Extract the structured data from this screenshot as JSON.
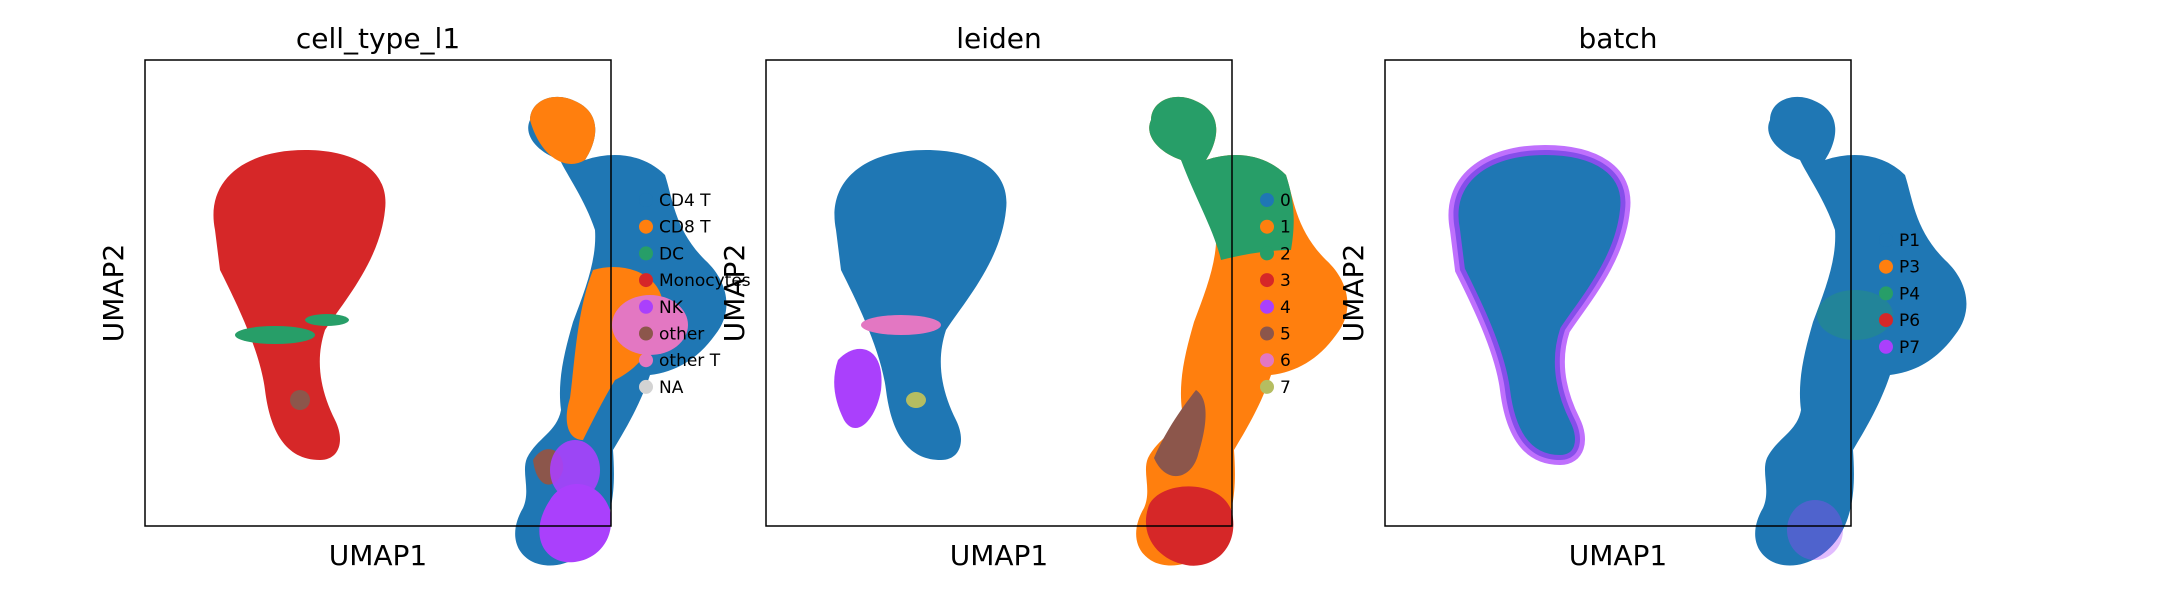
{
  "chart_data": [
    {
      "type": "scatter",
      "title": "cell_type_l1",
      "xlabel": "UMAP1",
      "ylabel": "UMAP2",
      "grid": false,
      "legend_position": "right",
      "legend": [
        {
          "label": "CD4 T",
          "color": "#1f77b4"
        },
        {
          "label": "CD8 T",
          "color": "#ff7f0e"
        },
        {
          "label": "DC",
          "color": "#279e68"
        },
        {
          "label": "Monocytes",
          "color": "#d62728"
        },
        {
          "label": "NK",
          "color": "#aa40fc"
        },
        {
          "label": "other",
          "color": "#8c564b"
        },
        {
          "label": "other T",
          "color": "#e377c2"
        },
        {
          "label": "NA",
          "color": "#d3d3d3"
        }
      ]
    },
    {
      "type": "scatter",
      "title": "leiden",
      "xlabel": "UMAP1",
      "ylabel": "UMAP2",
      "grid": false,
      "legend_position": "right",
      "legend": [
        {
          "label": "0",
          "color": "#1f77b4"
        },
        {
          "label": "1",
          "color": "#ff7f0e"
        },
        {
          "label": "2",
          "color": "#279e68"
        },
        {
          "label": "3",
          "color": "#d62728"
        },
        {
          "label": "4",
          "color": "#aa40fc"
        },
        {
          "label": "5",
          "color": "#8c564b"
        },
        {
          "label": "6",
          "color": "#e377c2"
        },
        {
          "label": "7",
          "color": "#b5bd61"
        }
      ]
    },
    {
      "type": "scatter",
      "title": "batch",
      "xlabel": "UMAP1",
      "ylabel": "UMAP2",
      "grid": false,
      "legend_position": "right",
      "legend": [
        {
          "label": "P1",
          "color": "#1f77b4"
        },
        {
          "label": "P3",
          "color": "#ff7f0e"
        },
        {
          "label": "P4",
          "color": "#279e68"
        },
        {
          "label": "P6",
          "color": "#d62728"
        },
        {
          "label": "P7",
          "color": "#aa40fc"
        }
      ]
    }
  ]
}
